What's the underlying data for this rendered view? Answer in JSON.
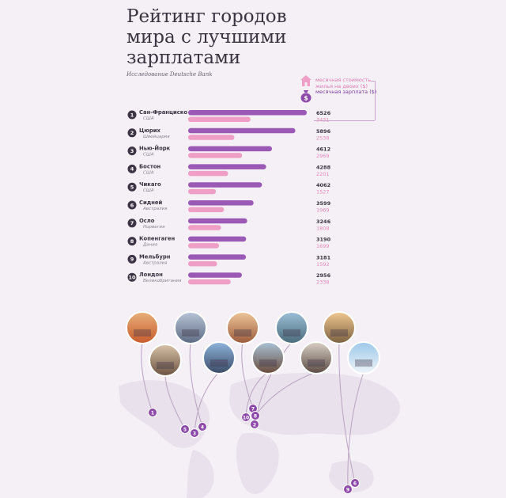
{
  "header": {
    "title_line1": "Рейтинг городов",
    "title_line2": "мира с лучшими",
    "title_line3": "зарплатами",
    "subtitle": "Исследование Deutsche Bank"
  },
  "legend": {
    "rent_label": "месячная стоимость жилья на двоих ($)",
    "salary_label": "месячная зарплата ($)"
  },
  "colors": {
    "salary": "#9b59b6",
    "rent": "#ef9fc6",
    "marker": "#8e4aa8",
    "map": "#e9e2ec",
    "line": "#b9a3c0"
  },
  "chart_data": {
    "type": "bar",
    "title": "Рейтинг городов мира с лучшими зарплатами",
    "categories": [
      "Сан-Франциско",
      "Цюрих",
      "Нью-Йорк",
      "Бостон",
      "Чикаго",
      "Сидней",
      "Осло",
      "Копенгаген",
      "Мельбурн",
      "Лондон"
    ],
    "countries": [
      "США",
      "Швейцария",
      "США",
      "США",
      "США",
      "Австралия",
      "Норвегия",
      "Дания",
      "Австралия",
      "Великобритания"
    ],
    "ranks": [
      "1",
      "2",
      "3",
      "4",
      "5",
      "6",
      "7",
      "8",
      "9",
      "10"
    ],
    "series": [
      {
        "name": "месячная зарплата ($)",
        "values": [
          6526,
          5896,
          4612,
          4288,
          4062,
          3599,
          3246,
          3190,
          3181,
          2956
        ]
      },
      {
        "name": "месячная стоимость жилья на двоих ($)",
        "values": [
          3431,
          2538,
          2969,
          2201,
          1527,
          1969,
          1808,
          1699,
          1592,
          2338
        ]
      }
    ],
    "xlim": [
      0,
      6700
    ]
  },
  "map": {
    "markers": [
      "1",
      "5",
      "3",
      "4",
      "7",
      "10",
      "8",
      "2",
      "6",
      "9"
    ]
  }
}
